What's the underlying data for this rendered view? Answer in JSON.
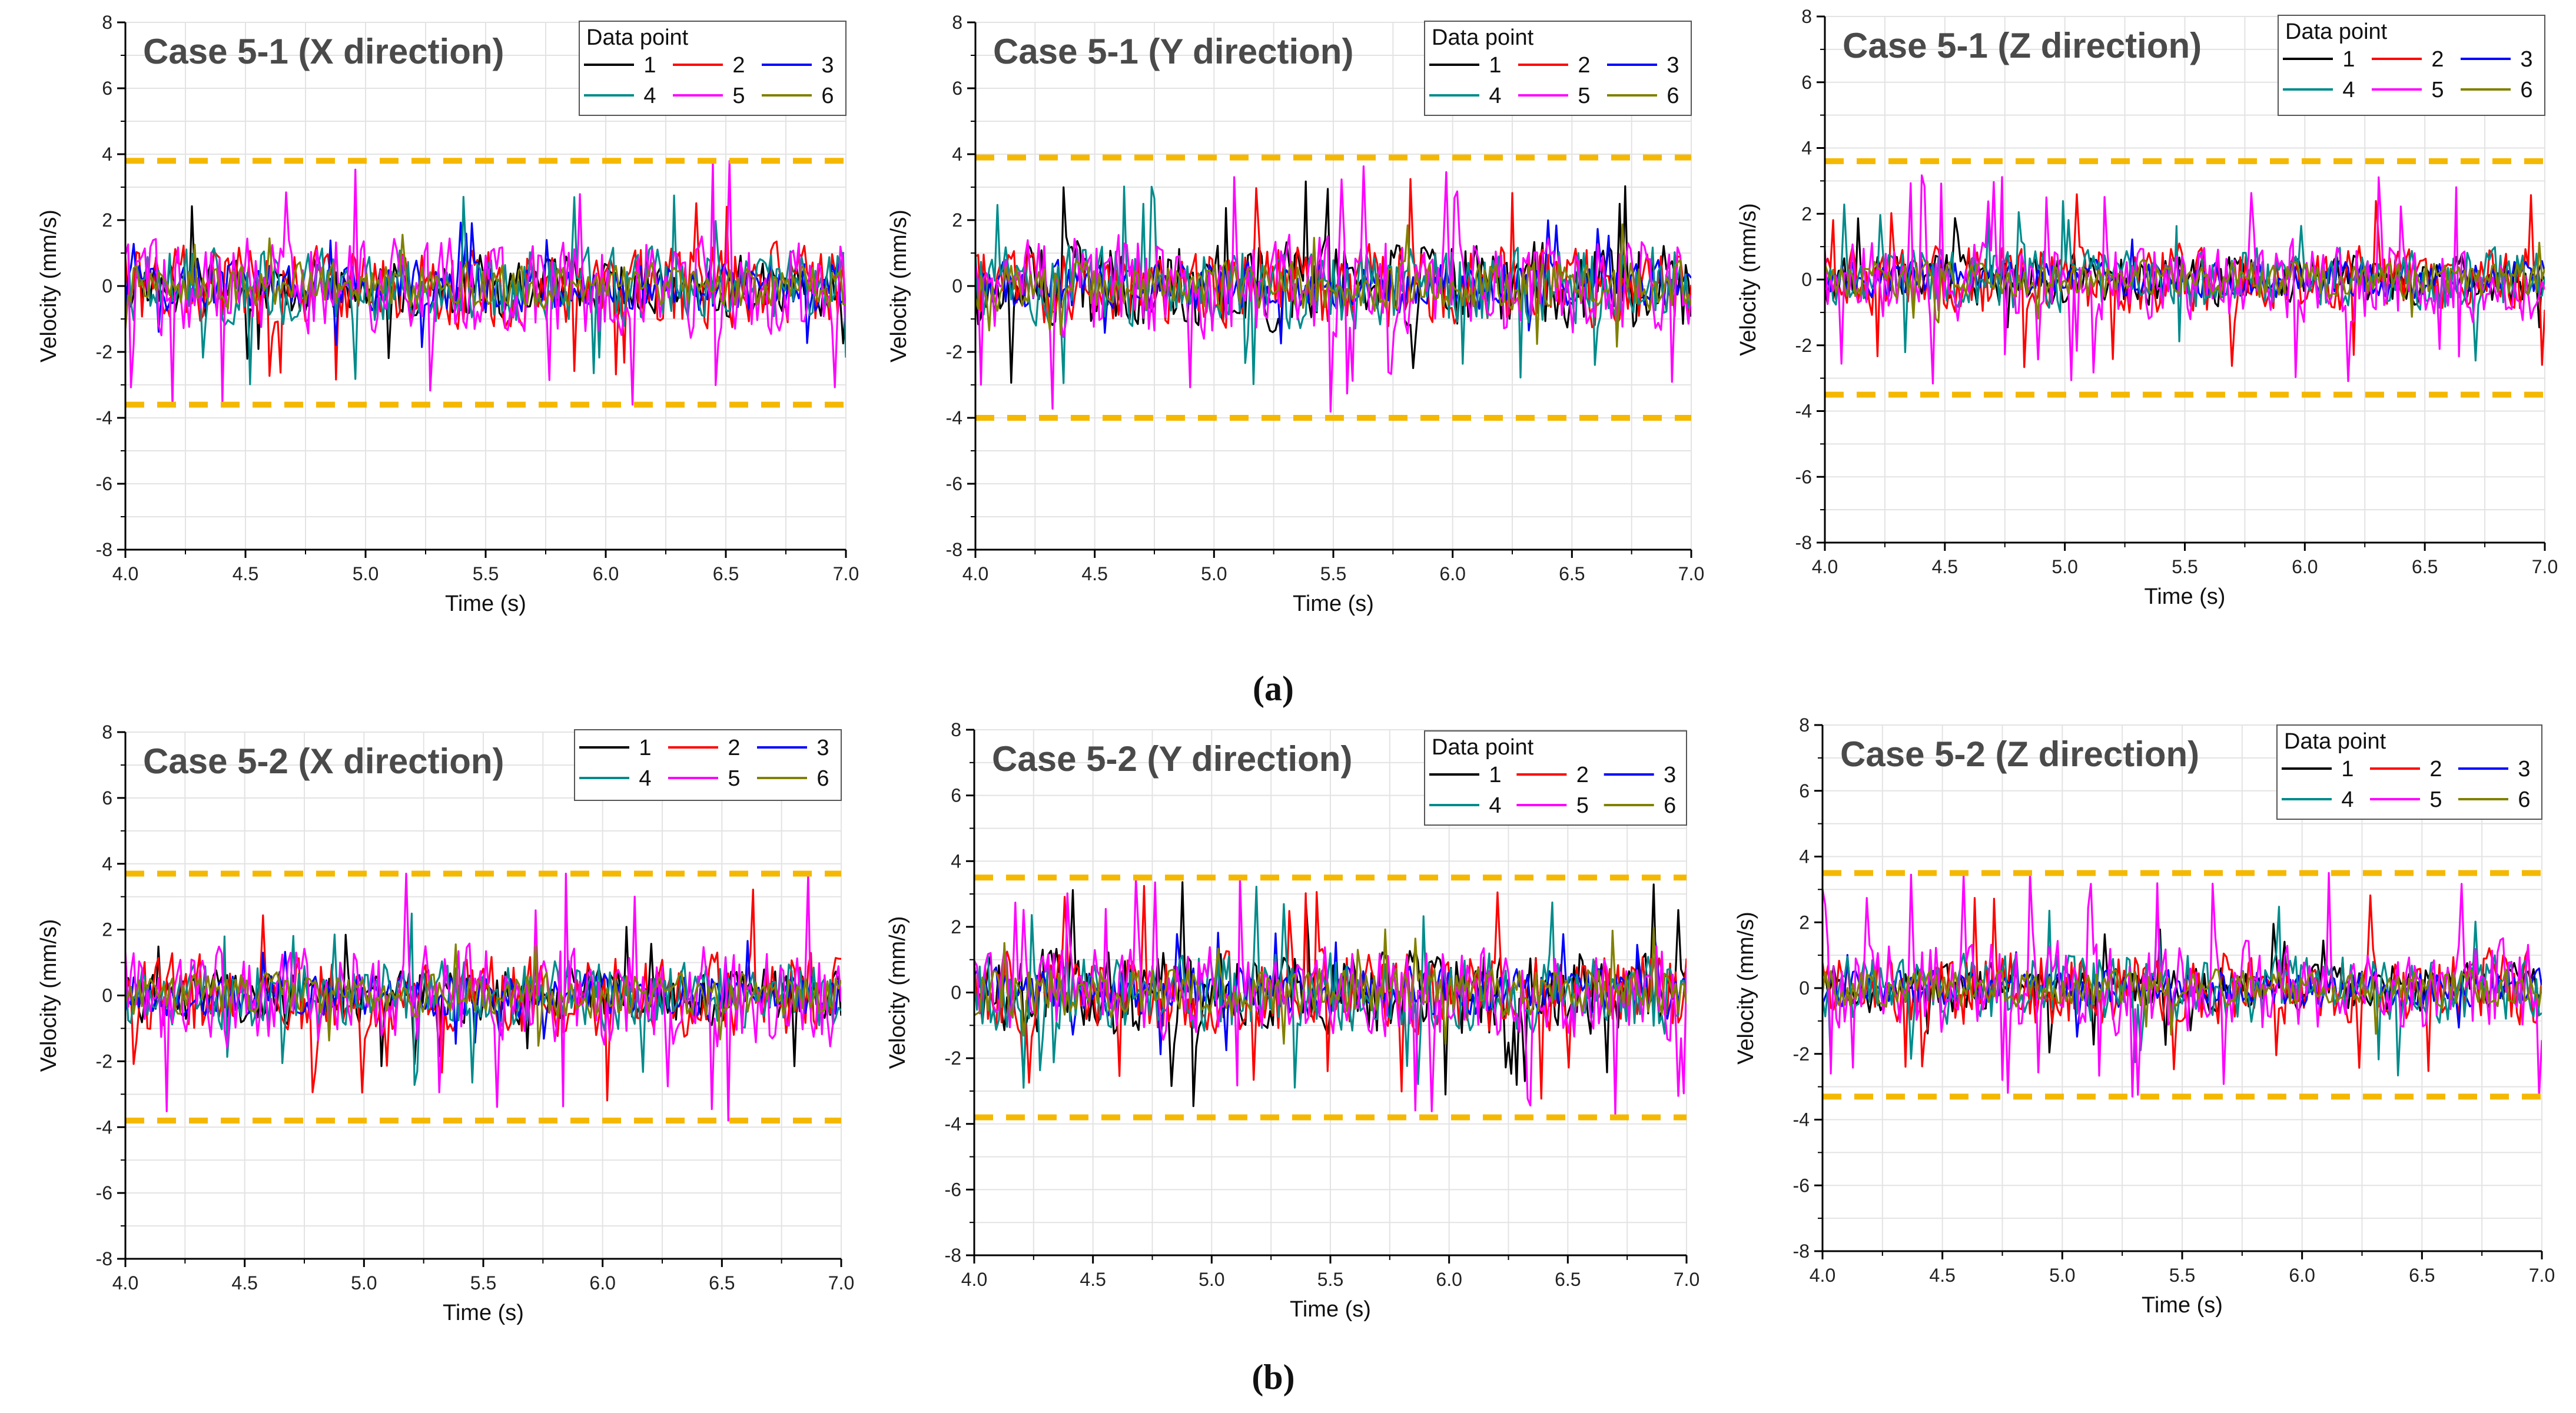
{
  "colors": {
    "threshold": "#F5B800",
    "grid": "#e3e3e3",
    "axis": "#000000"
  },
  "sublabels": [
    "(a)",
    "(b)"
  ],
  "chart_data": [
    {
      "type": "line",
      "title": "Case 5-1 (X direction)",
      "xlabel": "Time (s)",
      "ylabel": "Velocity (mm/s)",
      "xlim": [
        4.0,
        7.0
      ],
      "ylim": [
        -8,
        8
      ],
      "xticks": [
        "4.0",
        "4.5",
        "5.0",
        "5.5",
        "6.0",
        "6.5",
        "7.0"
      ],
      "yticks": [
        "8",
        "6",
        "4",
        "2",
        "0",
        "-2",
        "-4",
        "-6",
        "-8"
      ],
      "legend": {
        "title": "Data point",
        "entries": [
          "1",
          "2",
          "3",
          "4",
          "5",
          "6"
        ],
        "placement": "top-right"
      },
      "thresholds": [
        3.8,
        -3.6
      ],
      "series_colors": [
        "#000000",
        "#FF0000",
        "#0000FF",
        "#008B8B",
        "#FF00FF",
        "#808000"
      ],
      "series_amplitudes": [
        1.0,
        1.3,
        0.8,
        1.2,
        1.6,
        0.7
      ],
      "peak_values": [
        3.8,
        -3.6
      ]
    },
    {
      "type": "line",
      "title": "Case 5-1 (Y direction)",
      "xlabel": "Time (s)",
      "ylabel": "Velocity (mm/s)",
      "xlim": [
        4.0,
        7.0
      ],
      "ylim": [
        -8,
        8
      ],
      "xticks": [
        "4.0",
        "4.5",
        "5.0",
        "5.5",
        "6.0",
        "6.5",
        "7.0"
      ],
      "yticks": [
        "8",
        "6",
        "4",
        "2",
        "0",
        "-2",
        "-4",
        "-6",
        "-8"
      ],
      "legend": {
        "title": "Data point",
        "entries": [
          "1",
          "2",
          "3",
          "4",
          "5",
          "6"
        ],
        "placement": "top-right"
      },
      "thresholds": [
        3.9,
        -4.0
      ],
      "series_colors": [
        "#000000",
        "#FF0000",
        "#0000FF",
        "#008B8B",
        "#FF00FF",
        "#808000"
      ],
      "series_amplitudes": [
        1.4,
        1.3,
        0.8,
        1.3,
        1.6,
        0.8
      ],
      "peak_values": [
        3.9,
        -4.0
      ]
    },
    {
      "type": "line",
      "title": "Case 5-1 (Z direction)",
      "xlabel": "Time (s)",
      "ylabel": "Velocity (mm/s)",
      "xlim": [
        4.0,
        7.0
      ],
      "ylim": [
        -8,
        8
      ],
      "xticks": [
        "4.0",
        "4.5",
        "5.0",
        "5.5",
        "6.0",
        "6.5",
        "7.0"
      ],
      "yticks": [
        "8",
        "6",
        "4",
        "2",
        "0",
        "-2",
        "-4",
        "-6",
        "-8"
      ],
      "legend": {
        "title": "Data point",
        "entries": [
          "1",
          "2",
          "3",
          "4",
          "5",
          "6"
        ],
        "placement": "top-right"
      },
      "thresholds": [
        3.6,
        -3.5
      ],
      "series_colors": [
        "#000000",
        "#FF0000",
        "#0000FF",
        "#008B8B",
        "#FF00FF",
        "#808000"
      ],
      "series_amplitudes": [
        0.8,
        1.1,
        0.6,
        1.0,
        1.3,
        0.6
      ],
      "peak_values": [
        3.5,
        -3.4
      ]
    },
    {
      "type": "line",
      "title": "Case 5-2 (X direction)",
      "xlabel": "Time (s)",
      "ylabel": "Velocity (mm/s)",
      "xlim": [
        4.0,
        7.0
      ],
      "ylim": [
        -8,
        8
      ],
      "xticks": [
        "4.0",
        "4.5",
        "5.0",
        "5.5",
        "6.0",
        "6.5",
        "7.0"
      ],
      "yticks": [
        "8",
        "6",
        "4",
        "2",
        "0",
        "-2",
        "-4",
        "-6",
        "-8"
      ],
      "legend": {
        "title": "",
        "entries": [
          "1",
          "2",
          "3",
          "4",
          "5",
          "6"
        ],
        "placement": "top-right"
      },
      "thresholds": [
        3.7,
        -3.8
      ],
      "series_colors": [
        "#000000",
        "#FF0000",
        "#0000FF",
        "#008B8B",
        "#FF00FF",
        "#808000"
      ],
      "series_amplitudes": [
        0.9,
        1.3,
        0.7,
        1.1,
        1.6,
        0.7
      ],
      "peak_values": [
        3.6,
        -3.7
      ]
    },
    {
      "type": "line",
      "title": "Case 5-2 (Y direction)",
      "xlabel": "Time (s)",
      "ylabel": "Velocity (mm/s)",
      "xlim": [
        4.0,
        7.0
      ],
      "ylim": [
        -8,
        8
      ],
      "xticks": [
        "4.0",
        "4.5",
        "5.0",
        "5.5",
        "6.0",
        "6.5",
        "7.0"
      ],
      "yticks": [
        "8",
        "6",
        "4",
        "2",
        "0",
        "-2",
        "-4",
        "-6",
        "-8"
      ],
      "legend": {
        "title": "Data point",
        "entries": [
          "1",
          "2",
          "3",
          "4",
          "5",
          "6"
        ],
        "placement": "top-right"
      },
      "thresholds": [
        3.5,
        -3.8
      ],
      "series_colors": [
        "#000000",
        "#FF0000",
        "#0000FF",
        "#008B8B",
        "#FF00FF",
        "#808000"
      ],
      "series_amplitudes": [
        1.4,
        1.3,
        0.8,
        1.3,
        1.5,
        0.8
      ],
      "peak_values": [
        3.3,
        -3.8
      ]
    },
    {
      "type": "line",
      "title": "Case 5-2 (Z direction)",
      "xlabel": "Time (s)",
      "ylabel": "Velocity (mm/s)",
      "xlim": [
        4.0,
        7.0
      ],
      "ylim": [
        -8,
        8
      ],
      "xticks": [
        "4.0",
        "4.5",
        "5.0",
        "5.5",
        "6.0",
        "6.5",
        "7.0"
      ],
      "yticks": [
        "8",
        "6",
        "4",
        "2",
        "0",
        "-2",
        "-4",
        "-6",
        "-8"
      ],
      "legend": {
        "title": "Data point",
        "entries": [
          "1",
          "2",
          "3",
          "4",
          "5",
          "6"
        ],
        "placement": "top-right"
      },
      "thresholds": [
        3.5,
        -3.3
      ],
      "series_colors": [
        "#000000",
        "#FF0000",
        "#0000FF",
        "#008B8B",
        "#FF00FF",
        "#808000"
      ],
      "series_amplitudes": [
        0.8,
        1.2,
        0.6,
        1.1,
        1.5,
        0.6
      ],
      "peak_values": [
        3.4,
        -3.3
      ]
    }
  ]
}
